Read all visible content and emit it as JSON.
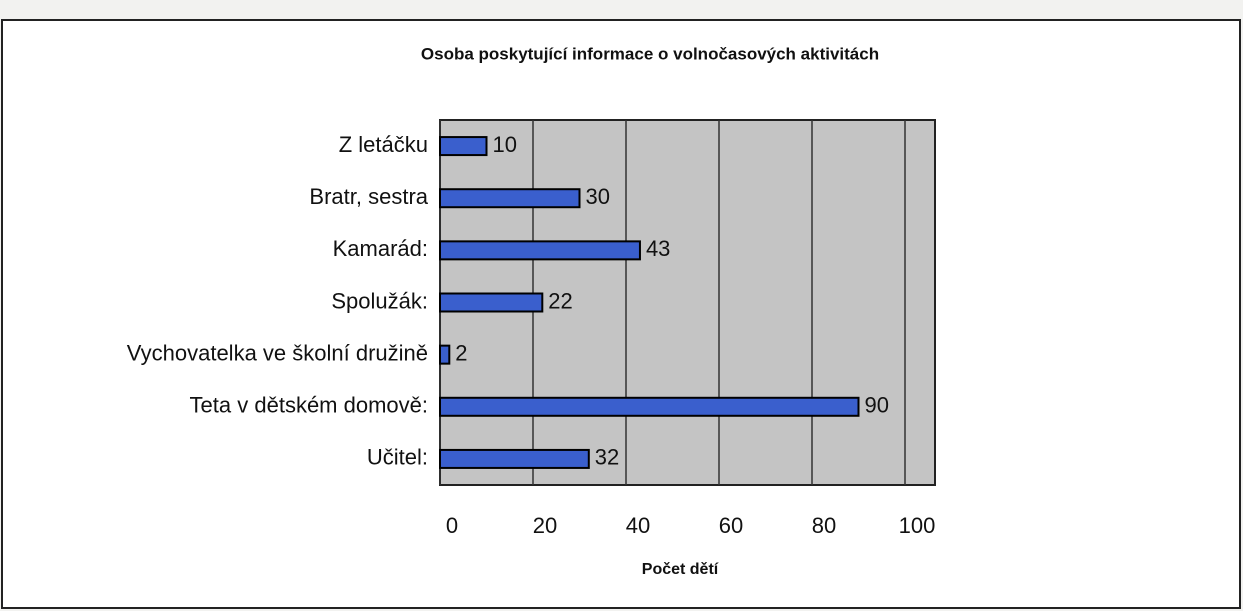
{
  "chart_data": {
    "type": "bar",
    "orientation": "horizontal",
    "title": "Osoba poskytující informace o volnočasových aktivitách",
    "x_label": "Počet dětí",
    "categories": [
      "Z letáčku",
      "Bratr, sestra",
      "Kamarád:",
      "Spolužák:",
      "Vychovatelka ve školní družině",
      "Teta v dětském domově:",
      "Učitel:"
    ],
    "values": [
      10,
      30,
      43,
      22,
      2,
      90,
      32
    ],
    "color": "#3a5fcd",
    "xlim": [
      0,
      100
    ],
    "xticks": [
      0,
      20,
      40,
      60,
      80,
      100
    ],
    "grid": true
  }
}
